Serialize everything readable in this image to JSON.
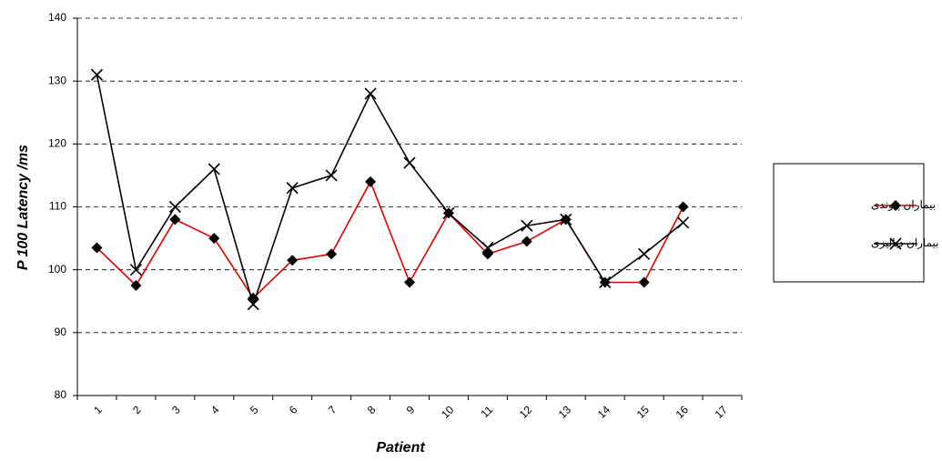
{
  "chart_data": {
    "type": "line",
    "x_label": "Patient",
    "y_label": "P 100 Latency /ms",
    "categories": [
      "1",
      "2",
      "3",
      "4",
      "5",
      "6",
      "7",
      "8",
      "9",
      "10",
      "11",
      "12",
      "13",
      "14",
      "15",
      "16",
      "17"
    ],
    "series": [
      {
        "name": "بیماران پیوندی",
        "color": "#e00000",
        "marker": "diamond",
        "values": [
          103.5,
          97.5,
          108,
          105,
          95.5,
          101.5,
          102.5,
          114,
          98,
          109,
          102.5,
          104.5,
          108,
          98,
          98,
          110,
          null
        ]
      },
      {
        "name": "بیماران دیالیزی",
        "color": "#000000",
        "marker": "x",
        "values": [
          131,
          100,
          110,
          116,
          94.5,
          113,
          115,
          128,
          117,
          109,
          103.5,
          107,
          108,
          98,
          102.5,
          107.5,
          null
        ]
      }
    ],
    "ylim": [
      80,
      140
    ],
    "yticks": [
      80,
      90,
      100,
      110,
      120,
      130,
      140
    ],
    "grid": true,
    "legend": "right"
  }
}
